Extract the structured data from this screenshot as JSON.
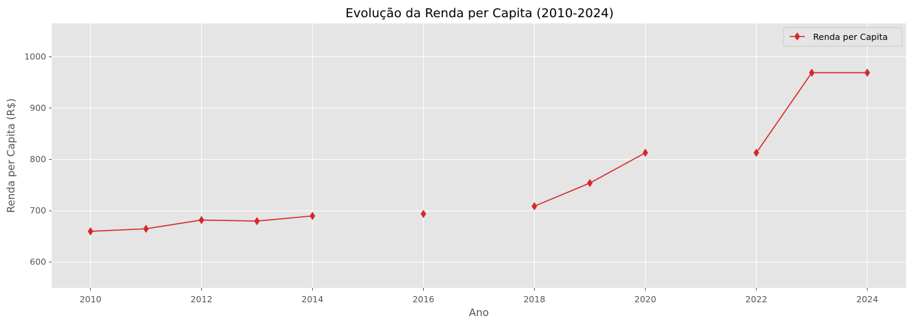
{
  "chart_data": {
    "type": "line",
    "title": "Evolução da Renda per Capita (2010-2024)",
    "xlabel": "Ano",
    "ylabel": "Renda per Capita (R$)",
    "xlim": [
      2009.3,
      2024.7
    ],
    "ylim": [
      550,
      1065
    ],
    "xticks": [
      "2010",
      "2012",
      "2014",
      "2016",
      "2018",
      "2020",
      "2022",
      "2024"
    ],
    "yticks": [
      "600",
      "700",
      "800",
      "900",
      "1000"
    ],
    "grid": true,
    "legend_position": "top-right",
    "series": [
      {
        "name": "Renda per Capita",
        "color": "#d62728",
        "marker": "thin-diamond",
        "points": [
          {
            "x": 2010,
            "y": 660
          },
          {
            "x": 2011,
            "y": 665
          },
          {
            "x": 2012,
            "y": 682
          },
          {
            "x": 2013,
            "y": 680
          },
          {
            "x": 2014,
            "y": 690
          },
          {
            "x": 2015,
            "y": null
          },
          {
            "x": 2016,
            "y": 694
          },
          {
            "x": 2017,
            "y": null
          },
          {
            "x": 2018,
            "y": 709
          },
          {
            "x": 2019,
            "y": 754
          },
          {
            "x": 2020,
            "y": 813
          },
          {
            "x": 2021,
            "y": null
          },
          {
            "x": 2022,
            "y": 813
          },
          {
            "x": 2023,
            "y": 969
          },
          {
            "x": 2024,
            "y": 969
          }
        ]
      }
    ]
  }
}
